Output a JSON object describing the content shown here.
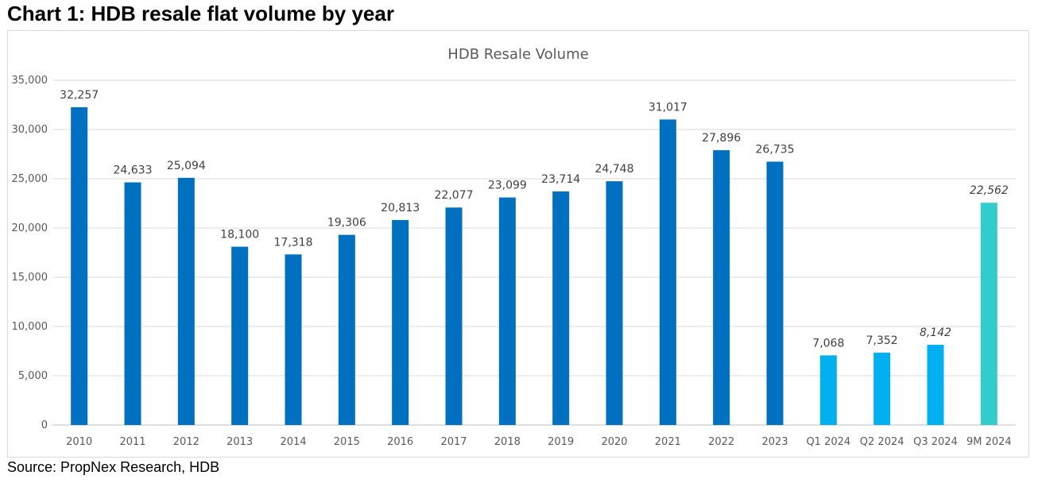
{
  "heading": "Chart 1: HDB resale flat volume by year",
  "source": "Source: PropNex Research, HDB",
  "chart_data": {
    "type": "bar",
    "title": "HDB Resale Volume",
    "xlabel": "",
    "ylabel": "",
    "ylim": [
      0,
      35000
    ],
    "yticks": [
      0,
      5000,
      10000,
      15000,
      20000,
      25000,
      30000,
      35000
    ],
    "ytick_labels": [
      "0",
      "5,000",
      "10,000",
      "15,000",
      "20,000",
      "25,000",
      "30,000",
      "35,000"
    ],
    "grid": true,
    "legend": "none",
    "categories": [
      "2010",
      "2011",
      "2012",
      "2013",
      "2014",
      "2015",
      "2016",
      "2017",
      "2018",
      "2019",
      "2020",
      "2021",
      "2022",
      "2023",
      "Q1 2024",
      "Q2 2024",
      "Q3 2024",
      "9M 2024"
    ],
    "values": [
      32257,
      24633,
      25094,
      18100,
      17318,
      19306,
      20813,
      22077,
      23099,
      23714,
      24748,
      31017,
      27896,
      26735,
      7068,
      7352,
      8142,
      22562
    ],
    "value_labels": [
      "32,257",
      "24,633",
      "25,094",
      "18,100",
      "17,318",
      "19,306",
      "20,813",
      "22,077",
      "23,099",
      "23,714",
      "24,748",
      "31,017",
      "27,896",
      "26,735",
      "7,068",
      "7,352",
      "8,142",
      "22,562"
    ],
    "italic_labels": [
      false,
      false,
      false,
      false,
      false,
      false,
      false,
      false,
      false,
      false,
      false,
      false,
      false,
      false,
      false,
      false,
      true,
      true
    ],
    "bar_colors": [
      "#0070C0",
      "#0070C0",
      "#0070C0",
      "#0070C0",
      "#0070C0",
      "#0070C0",
      "#0070C0",
      "#0070C0",
      "#0070C0",
      "#0070C0",
      "#0070C0",
      "#0070C0",
      "#0070C0",
      "#0070C0",
      "#00B0F0",
      "#00B0F0",
      "#00B0F0",
      "#33CCCC"
    ],
    "grid_color": "#d9d9d9",
    "axis_color": "#bfbfbf"
  }
}
